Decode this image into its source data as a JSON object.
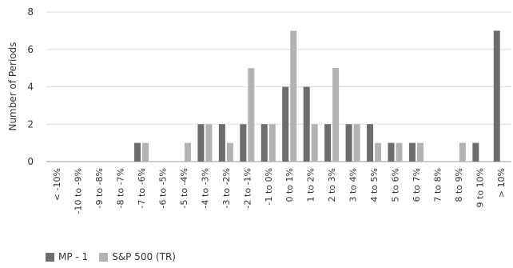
{
  "chart_data": {
    "type": "bar",
    "title": "",
    "xlabel": "",
    "ylabel": "Number of Periods",
    "ylim": [
      0,
      8
    ],
    "yticks": [
      0,
      2,
      4,
      6,
      8
    ],
    "grid": true,
    "legend_position": "bottom-left",
    "categories": [
      "< -10%",
      "-10 to -9%",
      "-9 to -8%",
      "-8 to -7%",
      "-7 to -6%",
      "-6 to -5%",
      "-5 to -4%",
      "-4 to -3%",
      "-3 to -2%",
      "-2 to -1%",
      "-1 to 0%",
      "0 to 1%",
      "1 to 2%",
      "2 to 3%",
      "3 to 4%",
      "4 to 5%",
      "5 to 6%",
      "6 to 7%",
      "7 to 8%",
      "8 to 9%",
      "9 to 10%",
      "> 10%"
    ],
    "series": [
      {
        "name": "MP - 1",
        "color": "#6d6d6d",
        "values": [
          0,
          0,
          0,
          0,
          1,
          0,
          0,
          2,
          2,
          2,
          2,
          4,
          4,
          2,
          2,
          2,
          1,
          1,
          0,
          0,
          1,
          7
        ]
      },
      {
        "name": "S&P 500 (TR)",
        "color": "#b3b3b3",
        "values": [
          0,
          0,
          0,
          0,
          1,
          0,
          1,
          2,
          1,
          5,
          2,
          7,
          2,
          5,
          2,
          1,
          1,
          1,
          0,
          1,
          0,
          0
        ]
      }
    ]
  }
}
